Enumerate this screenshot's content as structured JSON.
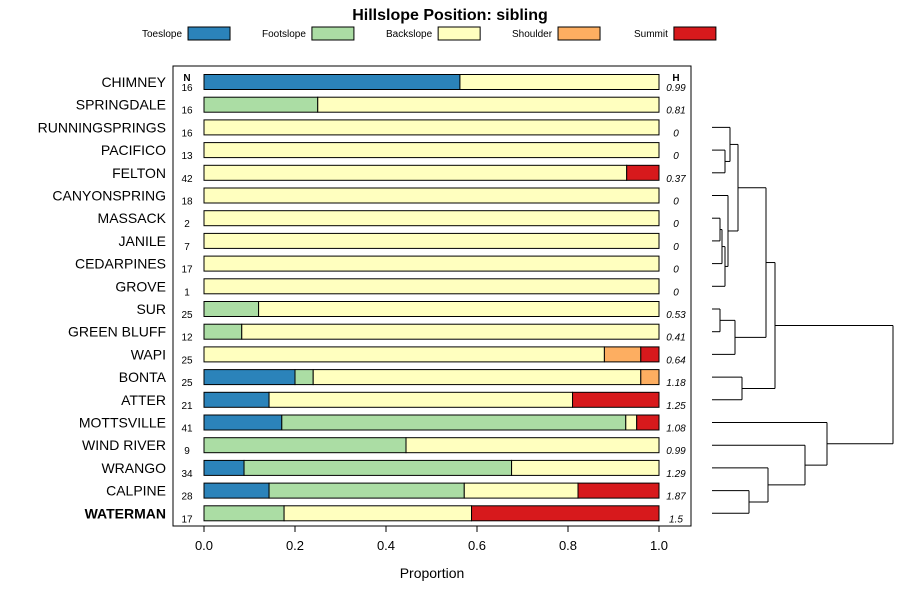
{
  "chart_data": {
    "type": "bar",
    "orientation": "horizontal",
    "stacked": true,
    "title": "Hillslope Position: sibling",
    "xlabel": "Proportion",
    "ylabel": "",
    "xlim": [
      0,
      1
    ],
    "x_ticks": [
      "0.0",
      "0.2",
      "0.4",
      "0.6",
      "0.8",
      "1.0"
    ],
    "n_header": "N",
    "h_header": "H",
    "legend_placement": "top",
    "series": [
      {
        "name": "Toeslope",
        "color": "#2b83ba"
      },
      {
        "name": "Footslope",
        "color": "#abdda4"
      },
      {
        "name": "Backslope",
        "color": "#ffffbf"
      },
      {
        "name": "Shoulder",
        "color": "#fdae61"
      },
      {
        "name": "Summit",
        "color": "#d7191c"
      }
    ],
    "rows": [
      {
        "name": "CHIMNEY",
        "n": "16",
        "h": "0.99",
        "values": [
          0.5625,
          0,
          0.4375,
          0,
          0
        ]
      },
      {
        "name": "SPRINGDALE",
        "n": "16",
        "h": "0.81",
        "values": [
          0,
          0.25,
          0.75,
          0,
          0
        ]
      },
      {
        "name": "RUNNINGSPRINGS",
        "n": "16",
        "h": "0",
        "values": [
          0,
          0,
          1,
          0,
          0
        ]
      },
      {
        "name": "PACIFICO",
        "n": "13",
        "h": "0",
        "values": [
          0,
          0,
          1,
          0,
          0
        ]
      },
      {
        "name": "FELTON",
        "n": "42",
        "h": "0.37",
        "values": [
          0,
          0,
          0.929,
          0,
          0.071
        ]
      },
      {
        "name": "CANYONSPRING",
        "n": "18",
        "h": "0",
        "values": [
          0,
          0,
          1,
          0,
          0
        ]
      },
      {
        "name": "MASSACK",
        "n": "2",
        "h": "0",
        "values": [
          0,
          0,
          1,
          0,
          0
        ]
      },
      {
        "name": "JANILE",
        "n": "7",
        "h": "0",
        "values": [
          0,
          0,
          1,
          0,
          0
        ]
      },
      {
        "name": "CEDARPINES",
        "n": "17",
        "h": "0",
        "values": [
          0,
          0,
          1,
          0,
          0
        ]
      },
      {
        "name": "GROVE",
        "n": "1",
        "h": "0",
        "values": [
          0,
          0,
          1,
          0,
          0
        ]
      },
      {
        "name": "SUR",
        "n": "25",
        "h": "0.53",
        "values": [
          0,
          0.12,
          0.88,
          0,
          0
        ]
      },
      {
        "name": "GREEN BLUFF",
        "n": "12",
        "h": "0.41",
        "values": [
          0,
          0.083,
          0.917,
          0,
          0
        ]
      },
      {
        "name": "WAPI",
        "n": "25",
        "h": "0.64",
        "values": [
          0,
          0,
          0.88,
          0.08,
          0.04
        ]
      },
      {
        "name": "BONTA",
        "n": "25",
        "h": "1.18",
        "values": [
          0.2,
          0.04,
          0.72,
          0.04,
          0
        ]
      },
      {
        "name": "ATTER",
        "n": "21",
        "h": "1.25",
        "values": [
          0.143,
          0,
          0.667,
          0,
          0.19
        ]
      },
      {
        "name": "MOTTSVILLE",
        "n": "41",
        "h": "1.08",
        "values": [
          0.171,
          0.756,
          0.024,
          0,
          0.049
        ]
      },
      {
        "name": "WIND RIVER",
        "n": "9",
        "h": "0.99",
        "values": [
          0,
          0.444,
          0.556,
          0,
          0
        ]
      },
      {
        "name": "WRANGO",
        "n": "34",
        "h": "1.29",
        "values": [
          0.088,
          0.588,
          0.324,
          0,
          0
        ]
      },
      {
        "name": "CALPINE",
        "n": "28",
        "h": "1.87",
        "values": [
          0.143,
          0.429,
          0.25,
          0,
          0.178
        ]
      },
      {
        "name": "WATERMAN",
        "n": "17",
        "h": "1.5",
        "values": [
          0,
          0.176,
          0.412,
          0,
          0.412
        ],
        "highlight": true
      }
    ]
  }
}
